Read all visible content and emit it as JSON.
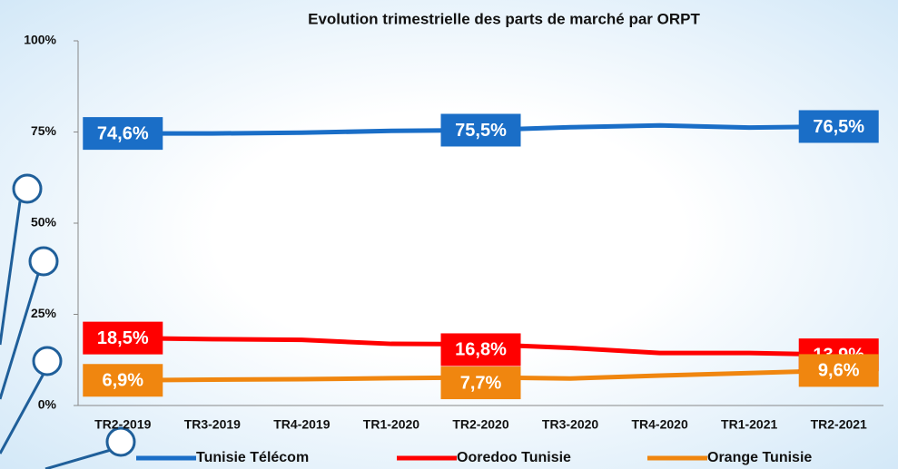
{
  "chart_data": {
    "type": "line",
    "title": "Evolution trimestrielle des parts de marché par ORPT",
    "categories": [
      "TR2-2019",
      "TR3-2019",
      "TR4-2019",
      "TR1-2020",
      "TR2-2020",
      "TR3-2020",
      "TR4-2020",
      "TR1-2021",
      "TR2-2021"
    ],
    "series": [
      {
        "name": "Tunisie Télécom",
        "color": "#1a6ec7",
        "values": [
          74.6,
          74.6,
          74.8,
          75.3,
          75.5,
          76.3,
          76.8,
          76.2,
          76.5
        ],
        "value_labels": [
          "74,6%",
          null,
          null,
          null,
          "75,5%",
          null,
          null,
          null,
          "76,5%"
        ]
      },
      {
        "name": "Ooredoo Tunisie",
        "color": "#ff0000",
        "values": [
          18.5,
          18.2,
          18.0,
          16.9,
          16.8,
          15.8,
          14.4,
          14.4,
          13.9
        ],
        "value_labels": [
          "18,5%",
          null,
          null,
          null,
          "16,8%",
          null,
          null,
          null,
          "13,9%"
        ]
      },
      {
        "name": "Orange Tunisie",
        "color": "#f0860f",
        "values": [
          6.9,
          7.1,
          7.2,
          7.5,
          7.7,
          7.4,
          8.2,
          8.9,
          9.6
        ],
        "value_labels": [
          "6,9%",
          null,
          null,
          null,
          "7,7%",
          null,
          null,
          null,
          "9,6%"
        ]
      }
    ],
    "ylim": [
      0,
      100
    ],
    "yticks": [
      {
        "value": 0,
        "label": "0%"
      },
      {
        "value": 25,
        "label": "25%"
      },
      {
        "value": 50,
        "label": "50%"
      },
      {
        "value": 75,
        "label": "75%"
      },
      {
        "value": 100,
        "label": "100%"
      }
    ],
    "grid": false,
    "legend": "bottom"
  }
}
